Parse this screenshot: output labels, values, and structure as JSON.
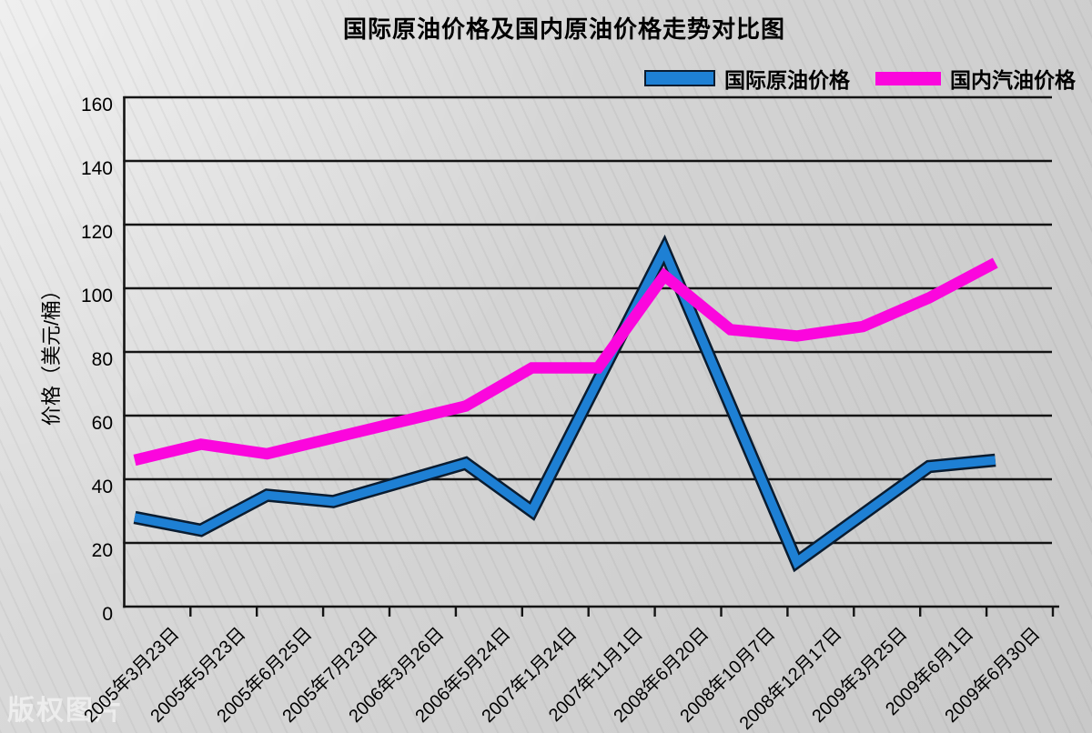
{
  "watermark": "版权图片",
  "chart_data": {
    "type": "line",
    "title": "国际原油价格及国内原油价格走势对比图",
    "xlabel": "",
    "ylabel": "价格（美元/桶）",
    "ylim": [
      0,
      160
    ],
    "yticks": [
      0,
      20,
      40,
      60,
      80,
      100,
      120,
      140,
      160
    ],
    "grid": true,
    "legend_position": "top-right",
    "categories": [
      "2005年3月23日",
      "2005年5月23日",
      "2005年6月25日",
      "2005年7月23日",
      "2006年3月26日",
      "2006年5月24日",
      "2007年1月24日",
      "2007年11月1日",
      "2008年6月20日",
      "2008年10月7日",
      "2008年12月17日",
      "2009年3月25日",
      "2009年6月1日",
      "2009年6月30日"
    ],
    "series": [
      {
        "name": "国际原油价格",
        "color": "#1e80d4",
        "outline": "#0a1c30",
        "values": [
          28,
          24,
          35,
          33,
          39,
          45,
          30,
          71,
          112,
          63,
          14,
          29,
          44,
          46
        ]
      },
      {
        "name": "国内汽油价格",
        "color": "#fb06dd",
        "values": [
          46,
          51,
          48,
          53,
          58,
          63,
          75,
          75,
          104,
          87,
          85,
          88,
          97,
          108
        ]
      }
    ]
  }
}
